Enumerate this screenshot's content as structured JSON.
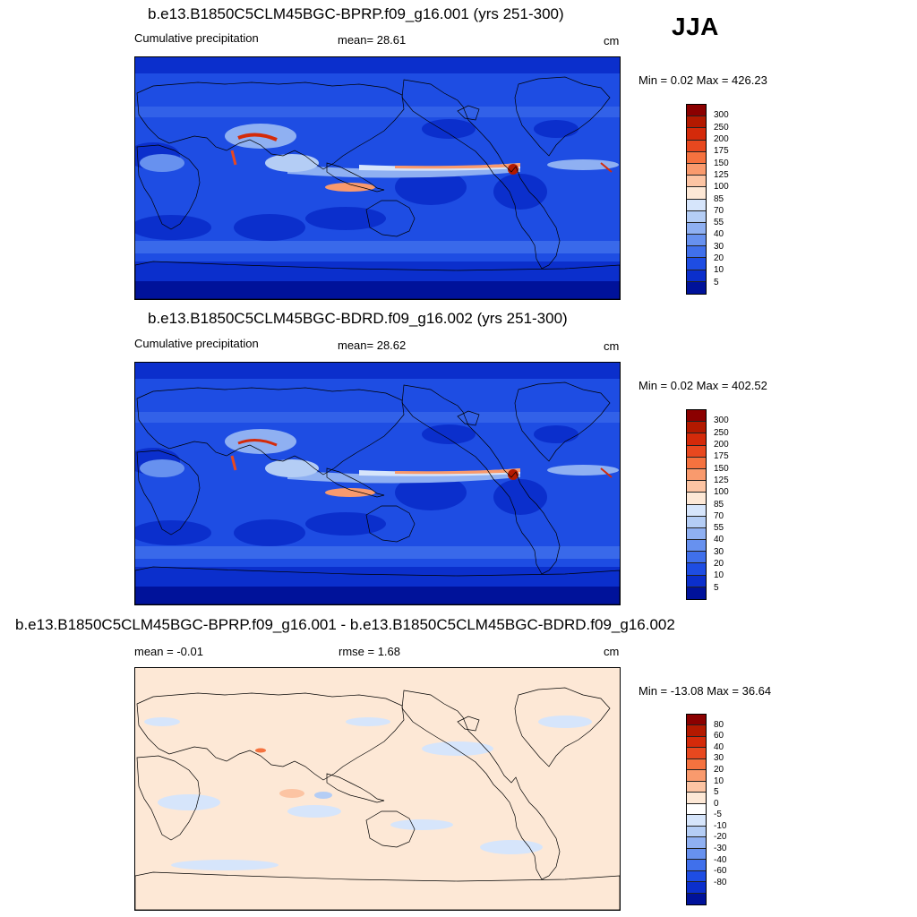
{
  "season": "JJA",
  "panels": [
    {
      "title": "b.e13.B1850C5CLM45BGC-BPRP.f09_g16.001 (yrs 251-300)",
      "left_label": "Cumulative precipitation",
      "center_label": "mean=  28.61",
      "units": "cm",
      "minmax": "Min =   0.02 Max = 426.23",
      "field": "model_a",
      "colorbar": {
        "colors": [
          "#8b0000",
          "#b31900",
          "#d42a0a",
          "#e8481f",
          "#f5723f",
          "#f99a6d",
          "#fcc4a3",
          "#fde8d6",
          "#d6e5fb",
          "#b4cdf5",
          "#8fb0f2",
          "#6791ef",
          "#4070eb",
          "#1e4de3",
          "#0b2fcc",
          "#00129a"
        ],
        "labels": [
          "300",
          "250",
          "200",
          "175",
          "150",
          "125",
          "100",
          "85",
          "70",
          "55",
          "40",
          "30",
          "20",
          "10",
          "5"
        ]
      }
    },
    {
      "title": "b.e13.B1850C5CLM45BGC-BDRD.f09_g16.002 (yrs 251-300)",
      "left_label": "Cumulative precipitation",
      "center_label": "mean=  28.62",
      "units": "cm",
      "minmax": "Min =   0.02 Max = 402.52",
      "field": "model_b",
      "colorbar": {
        "colors": [
          "#8b0000",
          "#b31900",
          "#d42a0a",
          "#e8481f",
          "#f5723f",
          "#f99a6d",
          "#fcc4a3",
          "#fde8d6",
          "#d6e5fb",
          "#b4cdf5",
          "#8fb0f2",
          "#6791ef",
          "#4070eb",
          "#1e4de3",
          "#0b2fcc",
          "#00129a"
        ],
        "labels": [
          "300",
          "250",
          "200",
          "175",
          "150",
          "125",
          "100",
          "85",
          "70",
          "55",
          "40",
          "30",
          "20",
          "10",
          "5"
        ]
      }
    },
    {
      "title": "b.e13.B1850C5CLM45BGC-BPRP.f09_g16.001 - b.e13.B1850C5CLM45BGC-BDRD.f09_g16.002",
      "left_label": "mean =  -0.01",
      "center_label": "rmse =   1.68",
      "units": "cm",
      "minmax": "Min = -13.08 Max =  36.64",
      "field": "difference",
      "colorbar": {
        "colors": [
          "#8b0000",
          "#b31900",
          "#d42a0a",
          "#e8481f",
          "#f5723f",
          "#f99a6d",
          "#fcc4a3",
          "#fde8d6",
          "#ffffff",
          "#d6e5fb",
          "#b4cdf5",
          "#8fb0f2",
          "#6791ef",
          "#4070eb",
          "#1e4de3",
          "#0b2fcc",
          "#00129a"
        ],
        "labels": [
          "80",
          "60",
          "40",
          "30",
          "20",
          "10",
          "5",
          "0",
          "-5",
          "-10",
          "-20",
          "-30",
          "-40",
          "-60",
          "-80"
        ]
      }
    }
  ]
}
